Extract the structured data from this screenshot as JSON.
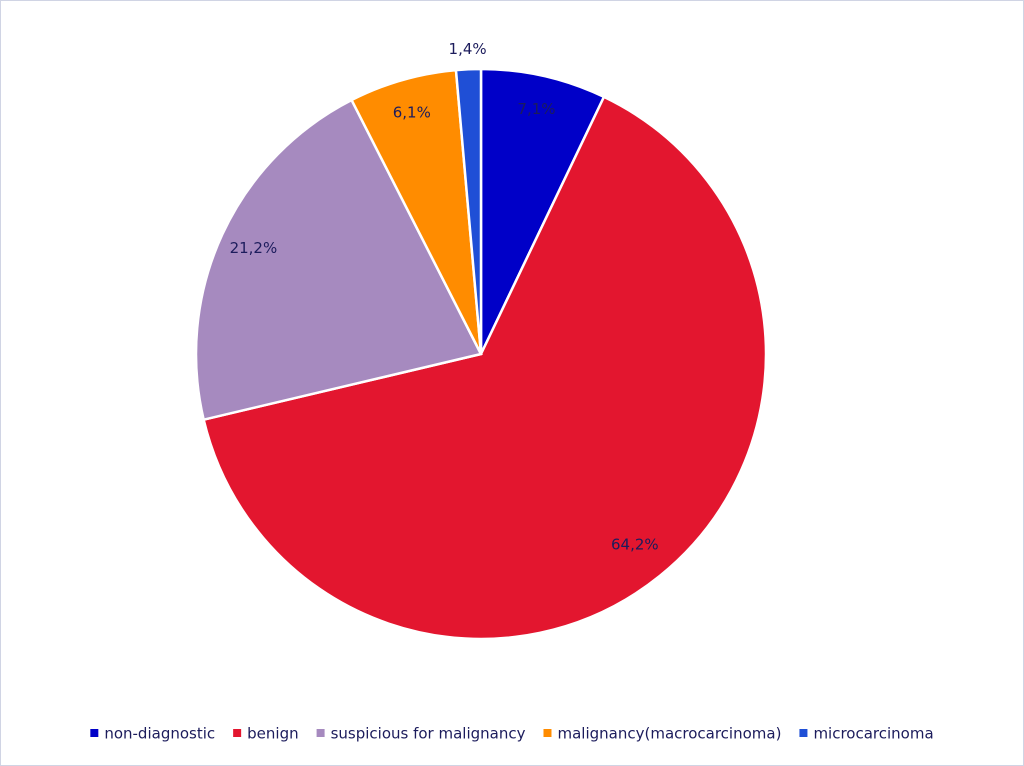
{
  "chart_data": {
    "type": "pie",
    "categories": [
      "non-diagnostic",
      "benign",
      "suspicious for malignancy",
      "malignancy(macrocarcinoma)",
      "microcarcinoma"
    ],
    "values": [
      7.1,
      64.2,
      21.2,
      6.1,
      1.4
    ],
    "value_labels": [
      "7,1%",
      "64,2%",
      "21,2%",
      "6,1%",
      "1,4%"
    ],
    "colors": [
      "#0000c8",
      "#e3162f",
      "#a68abf",
      "#ff8c00",
      "#1f4fd6"
    ],
    "legend": "bottom"
  }
}
